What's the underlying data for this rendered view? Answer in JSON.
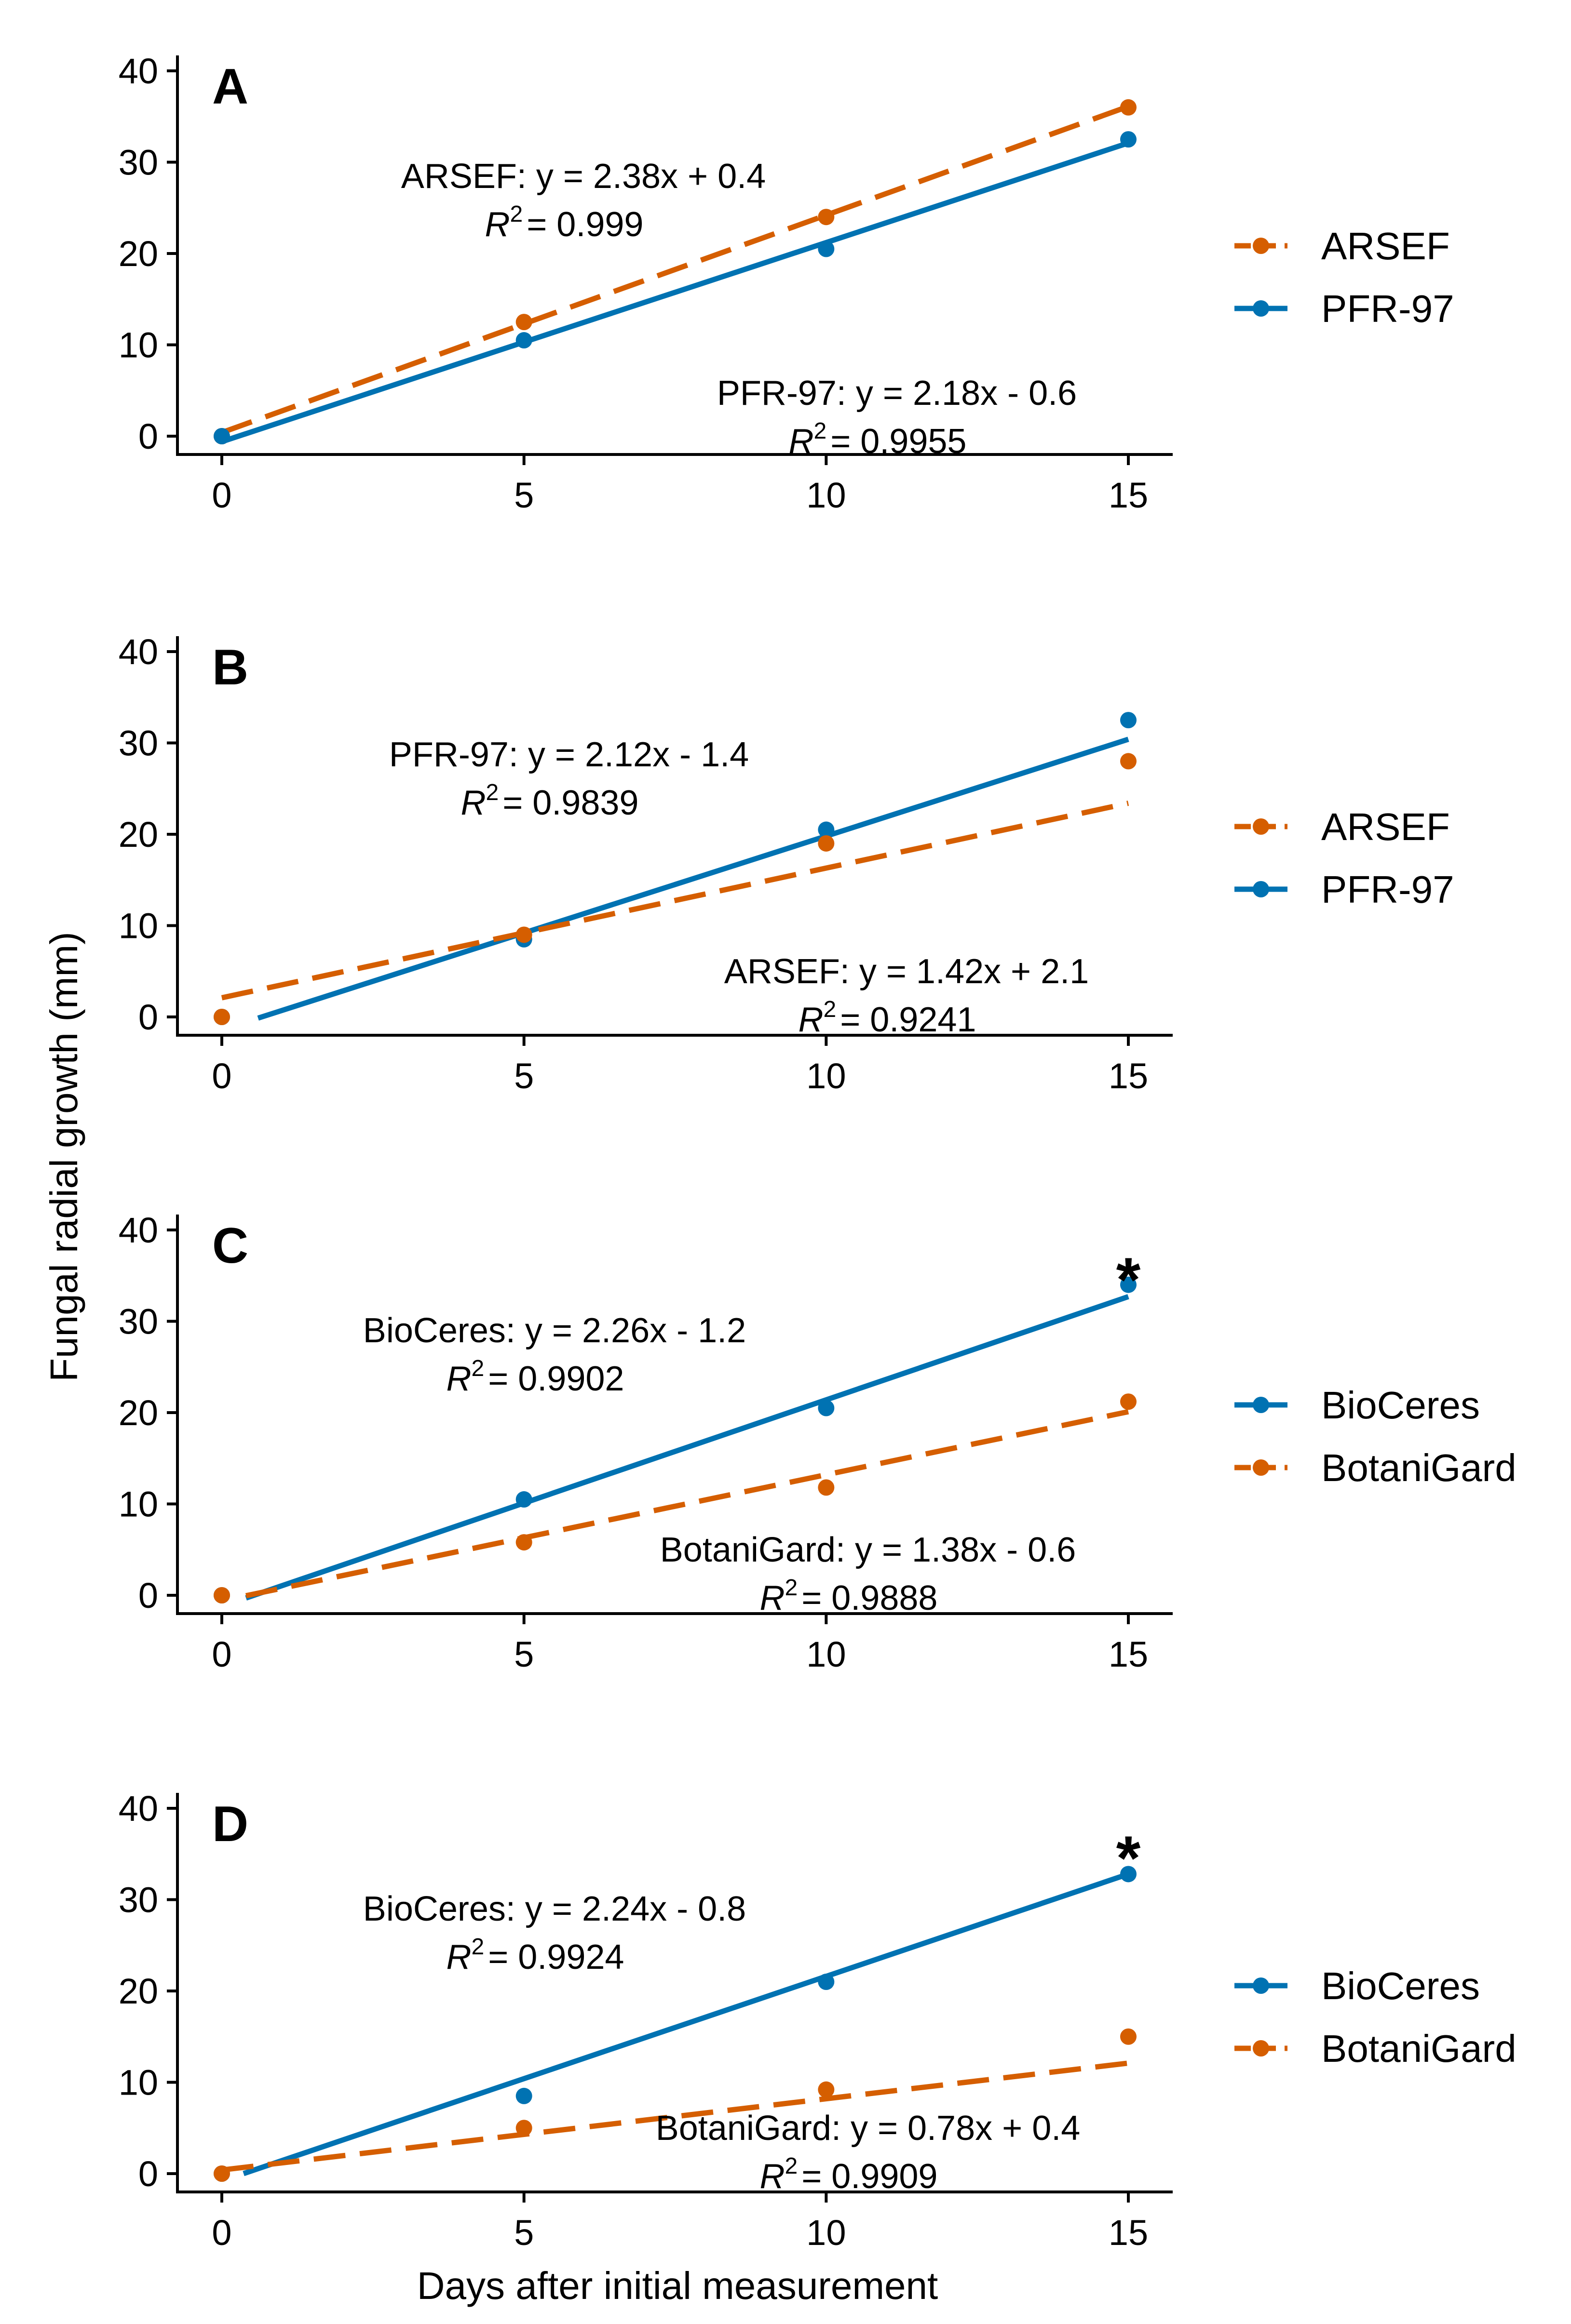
{
  "chart_data": {
    "type": "scatter",
    "ylabel": "Fungal radial growth (mm)",
    "xlabel": "Days after initial measurement",
    "xlim": [
      0,
      15
    ],
    "ylim": [
      0,
      40
    ],
    "xticks": [
      "0",
      "5",
      "10",
      "15"
    ],
    "yticks": [
      "0",
      "10",
      "20",
      "30",
      "40"
    ],
    "colors": {
      "orange": "#d55e00",
      "blue": "#0072b2"
    },
    "panels": [
      {
        "label": "A",
        "legend": [
          "ARSEF",
          "PFR-97"
        ],
        "series": [
          {
            "name": "ARSEF",
            "color": "#d55e00",
            "dash": true,
            "x": [
              0,
              5,
              10,
              15
            ],
            "y": [
              0,
              12.5,
              24,
              36
            ],
            "fit": {
              "slope": 2.38,
              "intercept": 0.4,
              "x0": 0
            },
            "equation": "ARSEF: y = 2.38x + 0.4",
            "r2_value": "= 0.999"
          },
          {
            "name": "PFR-97",
            "color": "#0072b2",
            "dash": false,
            "x": [
              0,
              5,
              10,
              15
            ],
            "y": [
              0,
              10.5,
              20.5,
              32.5
            ],
            "fit": {
              "slope": 2.18,
              "intercept": -0.6,
              "x0": 0
            },
            "equation": "PFR-97: y = 2.18x - 0.6",
            "r2_value": "= 0.9955"
          }
        ],
        "significance": ""
      },
      {
        "label": "B",
        "legend": [
          "ARSEF",
          "PFR-97"
        ],
        "series": [
          {
            "name": "PFR-97",
            "color": "#0072b2",
            "dash": false,
            "x": [
              0,
              5,
              10,
              15
            ],
            "y": [
              0,
              8.5,
              20.5,
              32.5
            ],
            "fit": {
              "slope": 2.12,
              "intercept": -1.4,
              "x0": 0.6
            },
            "equation": "PFR-97: y = 2.12x - 1.4",
            "r2_value": "= 0.9839"
          },
          {
            "name": "ARSEF",
            "color": "#d55e00",
            "dash": true,
            "x": [
              0,
              5,
              10,
              15
            ],
            "y": [
              0,
              9,
              19,
              28
            ],
            "fit": {
              "slope": 1.42,
              "intercept": 2.1,
              "x0": 0
            },
            "equation": "ARSEF: y = 1.42x + 2.1",
            "r2_value": "= 0.9241"
          }
        ],
        "significance": ""
      },
      {
        "label": "C",
        "legend": [
          "BioCeres",
          "BotaniGard"
        ],
        "series": [
          {
            "name": "BioCeres",
            "color": "#0072b2",
            "dash": false,
            "x": [
              0,
              5,
              10,
              15
            ],
            "y": [
              0,
              10.5,
              20.5,
              34
            ],
            "fit": {
              "slope": 2.26,
              "intercept": -1.2,
              "x0": 0.4
            },
            "equation": "BioCeres: y = 2.26x - 1.2",
            "r2_value": "= 0.9902"
          },
          {
            "name": "BotaniGard",
            "color": "#d55e00",
            "dash": true,
            "x": [
              0,
              5,
              10,
              15
            ],
            "y": [
              0,
              5.8,
              11.8,
              21.2
            ],
            "fit": {
              "slope": 1.38,
              "intercept": -0.6,
              "x0": 0.4
            },
            "equation": "BotaniGard: y = 1.38x - 0.6",
            "r2_value": "= 0.9888"
          }
        ],
        "significance": "*"
      },
      {
        "label": "D",
        "legend": [
          "BioCeres",
          "BotaniGard"
        ],
        "series": [
          {
            "name": "BioCeres",
            "color": "#0072b2",
            "dash": false,
            "x": [
              0,
              5,
              10,
              15
            ],
            "y": [
              0,
              8.5,
              21,
              32.8
            ],
            "fit": {
              "slope": 2.24,
              "intercept": -0.8,
              "x0": 0.36
            },
            "equation": "BioCeres: y = 2.24x - 0.8",
            "r2_value": "= 0.9924"
          },
          {
            "name": "BotaniGard",
            "color": "#d55e00",
            "dash": true,
            "x": [
              0,
              5,
              10,
              15
            ],
            "y": [
              0,
              5,
              9.2,
              15
            ],
            "fit": {
              "slope": 0.78,
              "intercept": 0.4,
              "x0": 0
            },
            "equation": "BotaniGard: y = 0.78x + 0.4",
            "r2_value": "= 0.9909"
          }
        ],
        "significance": "*"
      }
    ]
  }
}
